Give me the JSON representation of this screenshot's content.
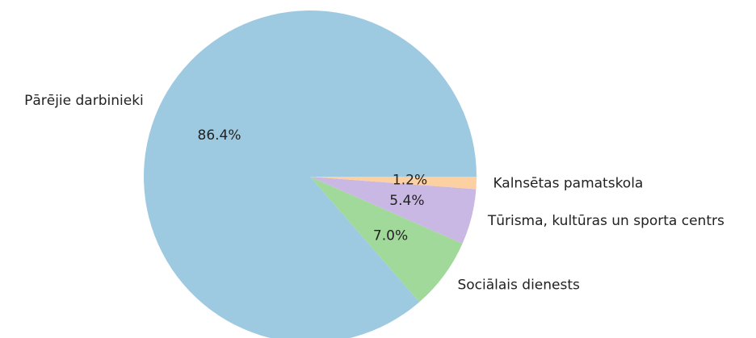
{
  "chart_data": {
    "type": "pie",
    "categories": [
      "Pārējie darbinieki",
      "Sociālais dienests",
      "Tūrisma, kultūras un sporta centrs",
      "Kalnsētas pamatskola"
    ],
    "values": [
      86.4,
      7.0,
      5.4,
      1.2
    ],
    "value_labels": [
      "86.4%",
      "7.0%",
      "5.4%",
      "1.2%"
    ],
    "colors": [
      "#9ecae1",
      "#a1d99b",
      "#c9b8e3",
      "#fdd0a2"
    ]
  }
}
